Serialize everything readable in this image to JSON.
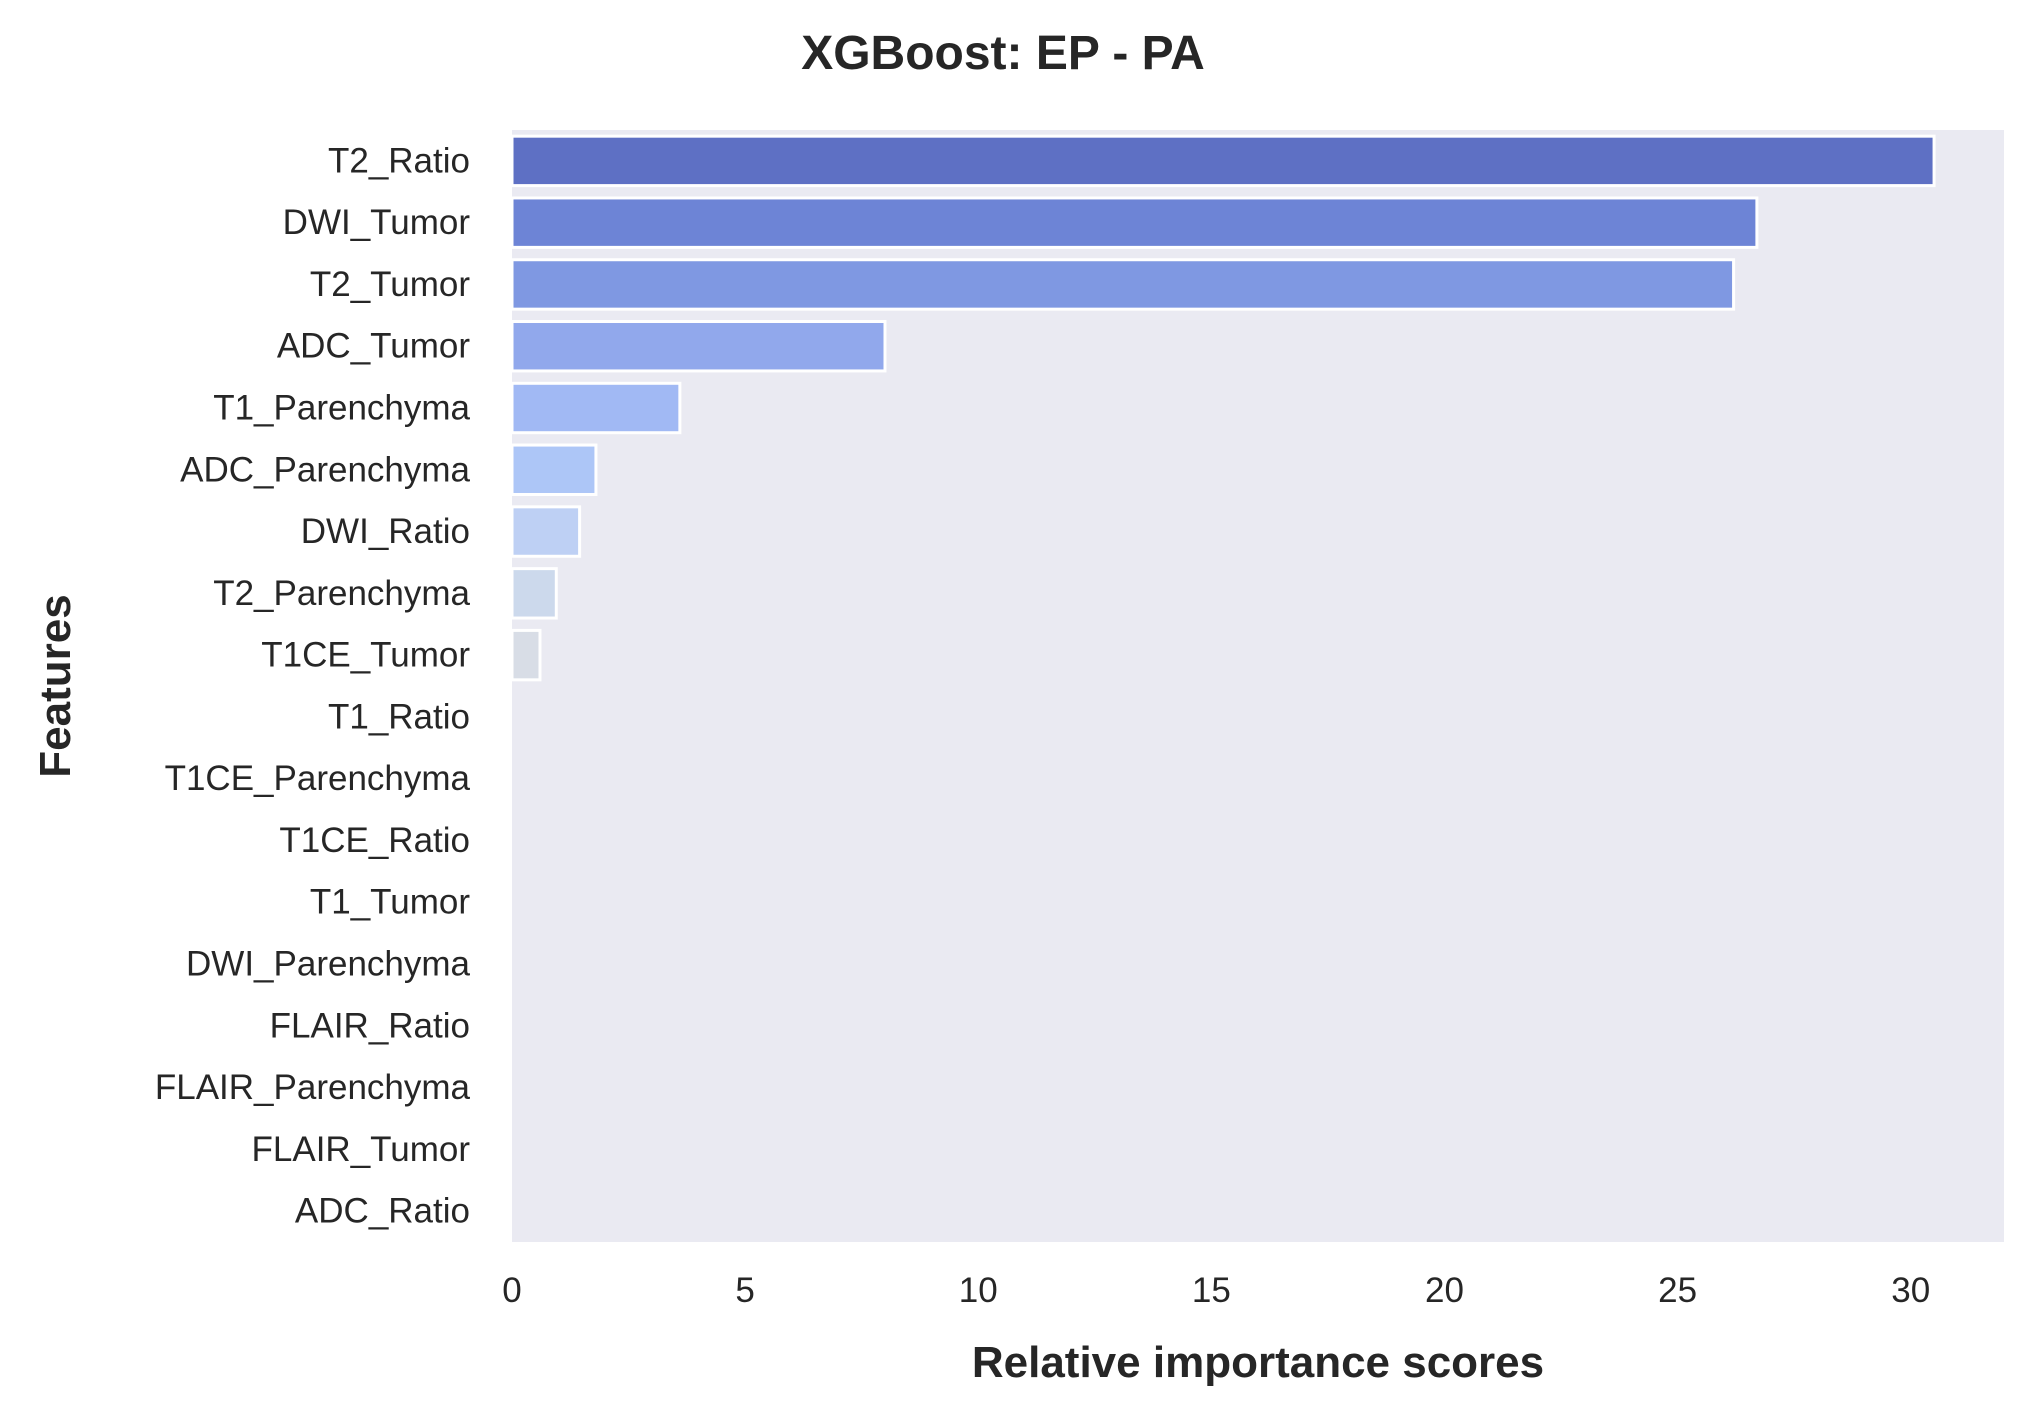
{
  "chart_data": {
    "type": "bar",
    "orientation": "horizontal",
    "title": "XGBoost: EP - PA",
    "xlabel": "Relative importance scores",
    "ylabel": "Features",
    "xlim": [
      0,
      32
    ],
    "xticks": [
      0,
      5,
      10,
      15,
      20,
      25,
      30
    ],
    "grid": false,
    "categories": [
      "T2_Ratio",
      "DWI_Tumor",
      "T2_Tumor",
      "ADC_Tumor",
      "T1_Parenchyma",
      "ADC_Parenchyma",
      "DWI_Ratio",
      "T2_Parenchyma",
      "T1CE_Tumor",
      "T1_Ratio",
      "T1CE_Parenchyma",
      "T1CE_Ratio",
      "T1_Tumor",
      "DWI_Parenchyma",
      "FLAIR_Ratio",
      "FLAIR_Parenchyma",
      "FLAIR_Tumor",
      "ADC_Ratio"
    ],
    "values": [
      30.5,
      26.7,
      26.2,
      8.0,
      3.6,
      1.8,
      1.45,
      0.95,
      0.6,
      0,
      0,
      0,
      0,
      0,
      0,
      0,
      0,
      0
    ],
    "colors": [
      "#5e70c4",
      "#6d84d6",
      "#7f98e2",
      "#91a8ec",
      "#a1b9f4",
      "#adc6f7",
      "#bed0f4",
      "#ccd9ec",
      "#d8dde6",
      "#dcdde2",
      "#dcdde2",
      "#dcdde2",
      "#dcdde2",
      "#dcdde2",
      "#dcdde2",
      "#dcdde2",
      "#dcdde2",
      "#dcdde2"
    ],
    "plot_background": "#eaeaf2"
  }
}
